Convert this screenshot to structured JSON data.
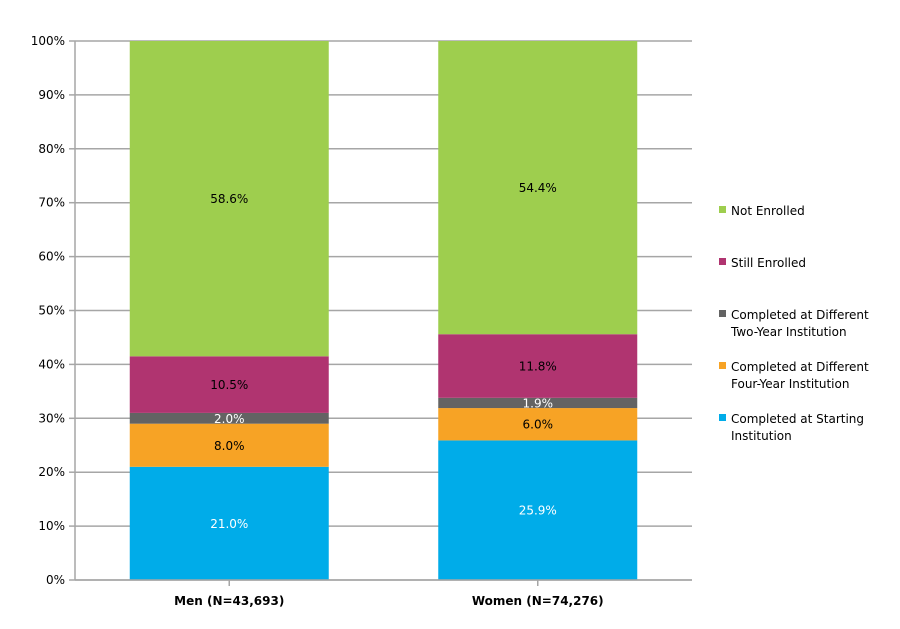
{
  "chart_data": {
    "type": "bar",
    "stacked": true,
    "title": "",
    "xlabel": "",
    "ylabel": "",
    "ylim": [
      0,
      100
    ],
    "yticks": [
      "0%",
      "10%",
      "20%",
      "30%",
      "40%",
      "50%",
      "60%",
      "70%",
      "80%",
      "90%",
      "100%"
    ],
    "grid": true,
    "legend_position": "right",
    "categories": [
      "Men (N=43,693)",
      "Women (N=74,276)"
    ],
    "series": [
      {
        "name": "Completed at Starting Institution",
        "legend_lines": [
          "Completed at Starting",
          "Institution"
        ],
        "color": "#00ACE9",
        "label_color": "#FFFFFF",
        "values": [
          21.0,
          25.9
        ],
        "labels": [
          "21.0%",
          "25.9%"
        ]
      },
      {
        "name": "Completed at Different Four-Year Institution",
        "legend_lines": [
          "Completed at Different",
          "Four-Year Institution"
        ],
        "color": "#F7A325",
        "label_color": "#000000",
        "values": [
          8.0,
          6.0
        ],
        "labels": [
          "8.0%",
          "6.0%"
        ]
      },
      {
        "name": "Completed at Different Two-Year Institution",
        "legend_lines": [
          "Completed at Different",
          "Two-Year Institution"
        ],
        "color": "#636363",
        "label_color": "#FFFFFF",
        "values": [
          2.0,
          1.9
        ],
        "labels": [
          "2.0%",
          "1.9%"
        ]
      },
      {
        "name": "Still Enrolled",
        "legend_lines": [
          "Still Enrolled"
        ],
        "color": "#B03470",
        "label_color": "#000000",
        "values": [
          10.5,
          11.8
        ],
        "labels": [
          "10.5%",
          "11.8%"
        ]
      },
      {
        "name": "Not Enrolled",
        "legend_lines": [
          "Not Enrolled"
        ],
        "color": "#9ECE4E",
        "label_color": "#000000",
        "values": [
          58.6,
          54.4
        ],
        "labels": [
          "58.6%",
          "54.4%"
        ]
      }
    ]
  }
}
